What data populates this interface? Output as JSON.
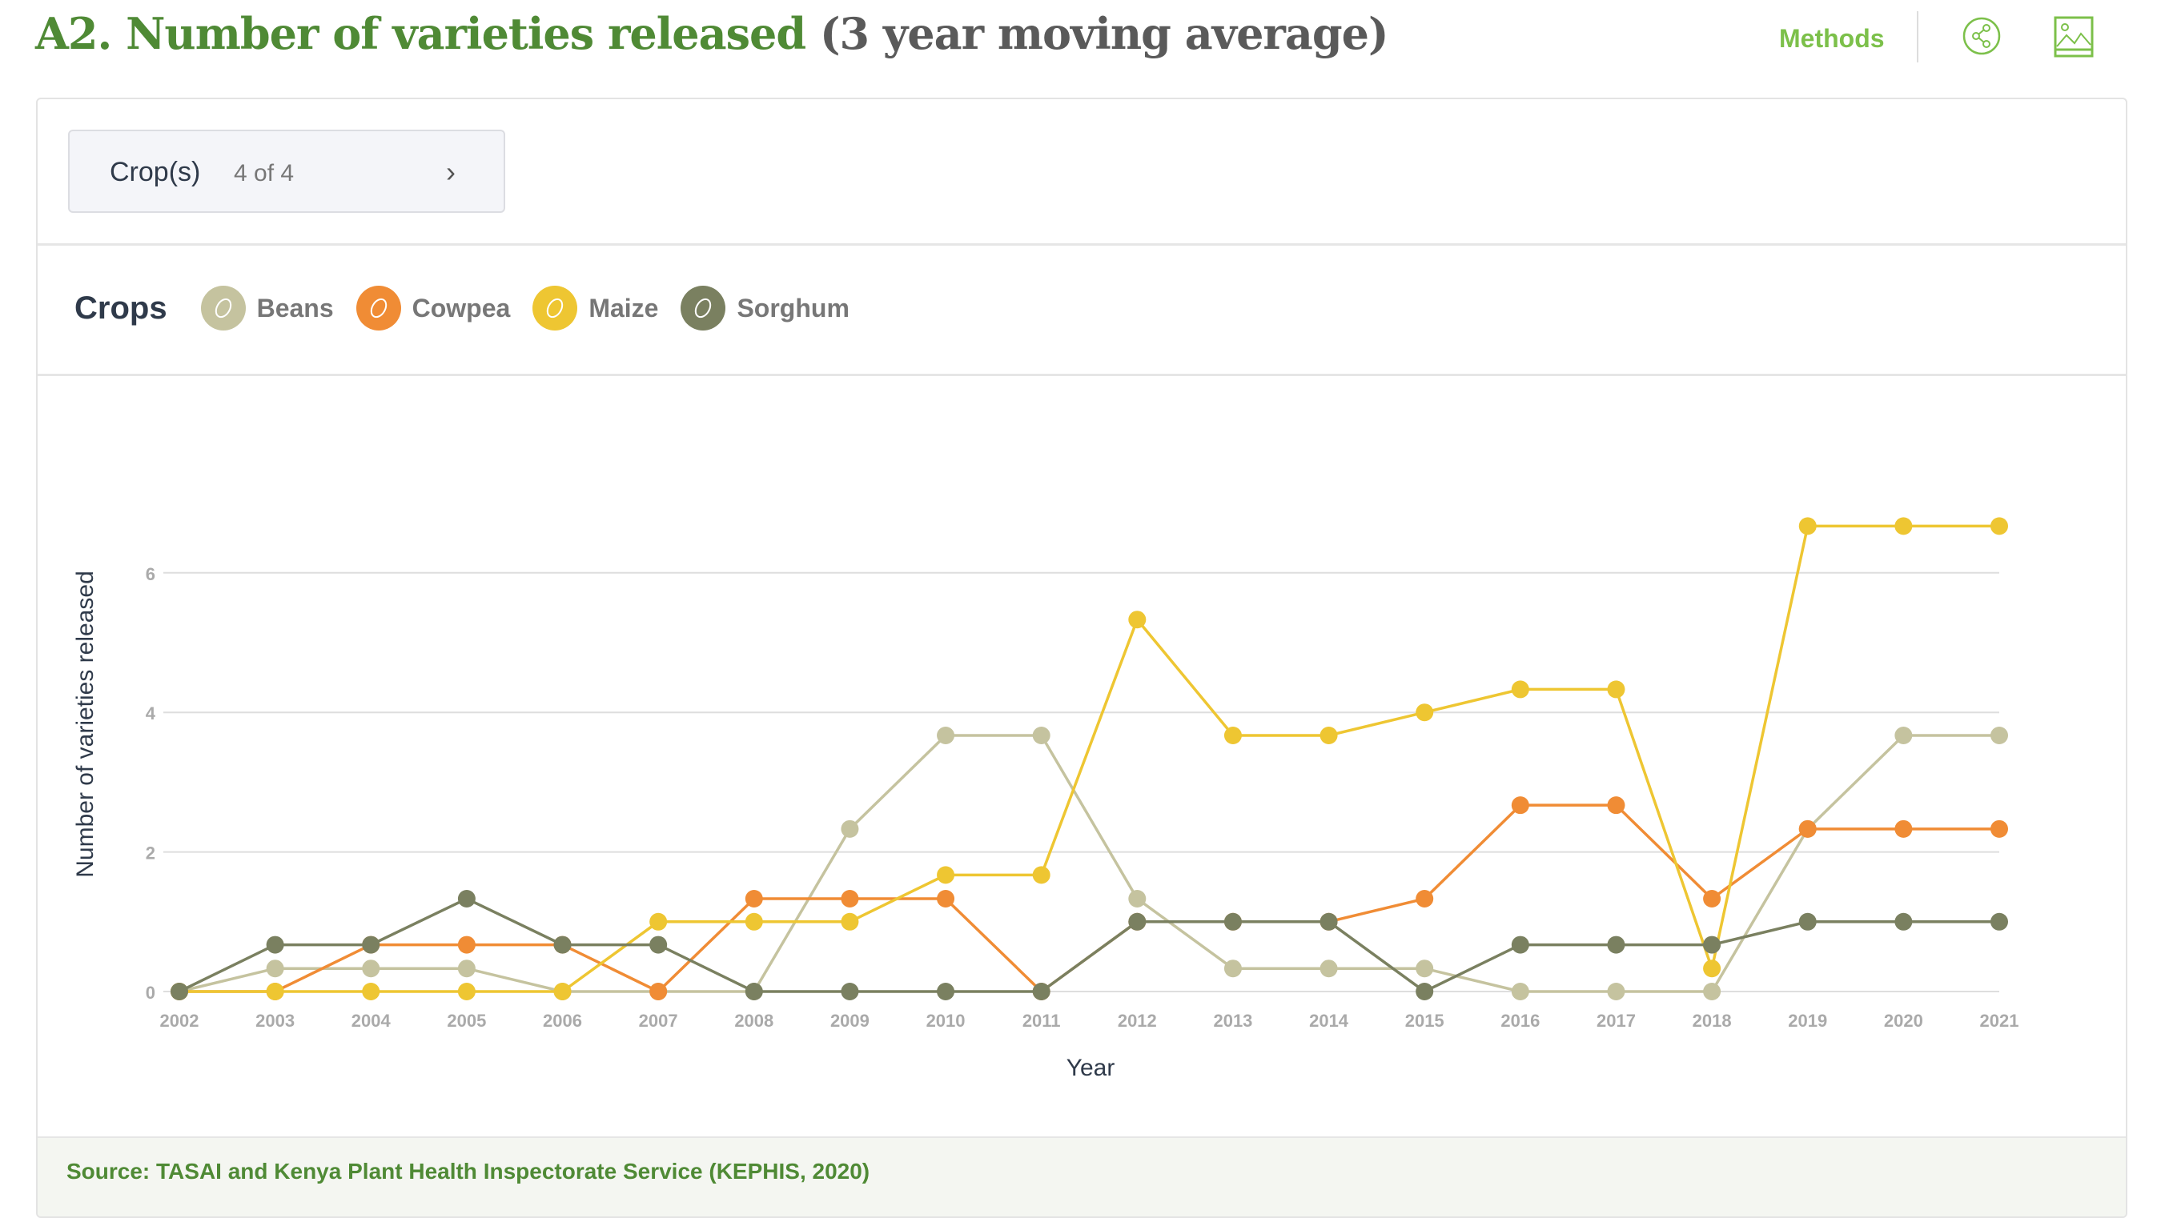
{
  "header": {
    "title_main": "A2. Number of varieties released",
    "title_sub": "(3 year moving average)",
    "methods_label": "Methods",
    "share_icon": "share-icon",
    "image_icon": "image-download-icon"
  },
  "filter": {
    "label": "Crop(s)",
    "count": "4 of 4",
    "chevron_icon": "chevron-right-icon"
  },
  "legend": {
    "heading": "Crops",
    "items": [
      {
        "label": "Beans",
        "color": "#c5c39f",
        "icon": "bean-icon"
      },
      {
        "label": "Cowpea",
        "color": "#f08c35",
        "icon": "cowpea-icon"
      },
      {
        "label": "Maize",
        "color": "#eec632",
        "icon": "maize-icon"
      },
      {
        "label": "Sorghum",
        "color": "#7a8060",
        "icon": "sorghum-icon"
      }
    ]
  },
  "chart_data": {
    "type": "line",
    "xlabel": "Year",
    "ylabel": "Number of varieties released",
    "x": [
      2002,
      2003,
      2004,
      2005,
      2006,
      2007,
      2008,
      2009,
      2010,
      2011,
      2012,
      2013,
      2014,
      2015,
      2016,
      2017,
      2018,
      2019,
      2020,
      2021
    ],
    "ylim": [
      0,
      7
    ],
    "yticks": [
      0,
      2,
      4,
      6
    ],
    "grid": true,
    "series": [
      {
        "name": "Beans",
        "color": "#c5c39f",
        "values": [
          0,
          0.33,
          0.33,
          0.33,
          0,
          0,
          0,
          2.33,
          3.67,
          3.67,
          1.33,
          0.33,
          0.33,
          0.33,
          0,
          0,
          0,
          2.33,
          3.67,
          3.67
        ]
      },
      {
        "name": "Cowpea",
        "color": "#f08c35",
        "values": [
          0,
          0,
          0.67,
          0.67,
          0.67,
          0,
          1.33,
          1.33,
          1.33,
          0,
          1,
          1,
          1,
          1.33,
          2.67,
          2.67,
          1.33,
          2.33,
          2.33,
          2.33
        ]
      },
      {
        "name": "Maize",
        "color": "#eec632",
        "values": [
          0,
          0,
          0,
          0,
          0,
          1,
          1,
          1,
          1.67,
          1.67,
          5.33,
          3.67,
          3.67,
          4,
          4.33,
          4.33,
          0.33,
          6.67,
          6.67,
          6.67
        ]
      },
      {
        "name": "Sorghum",
        "color": "#7a8060",
        "values": [
          0,
          0.67,
          0.67,
          1.33,
          0.67,
          0.67,
          0,
          0,
          0,
          0,
          1,
          1,
          1,
          0,
          0.67,
          0.67,
          0.67,
          1,
          1,
          1
        ]
      }
    ]
  },
  "footer": {
    "source": "Source: TASAI and Kenya Plant Health Inspectorate Service (KEPHIS, 2020)"
  }
}
